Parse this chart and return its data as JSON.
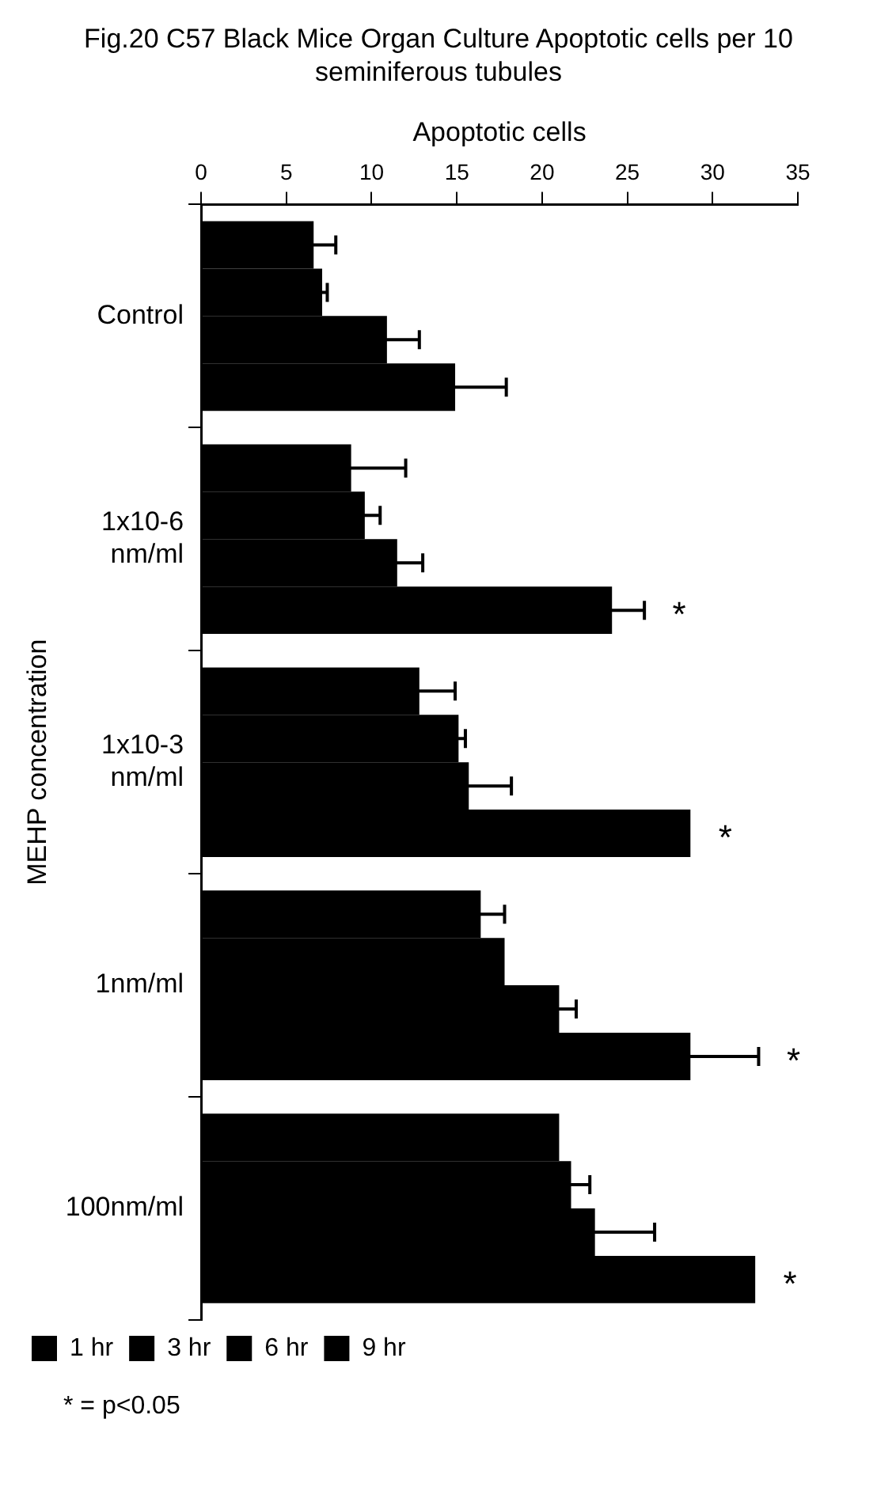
{
  "chart_data": {
    "type": "bar",
    "orientation": "horizontal",
    "title": "Fig.20 C57 Black Mice Organ Culture Apoptotic cells per 10 seminiferous tubules",
    "xlabel": "Apoptotic cells",
    "ylabel": "MEHP concentration",
    "categories": [
      "Control",
      "1x10-6 nm/ml",
      "1x10-3 nm/ml",
      "1nm/ml",
      "100nm/ml"
    ],
    "xlim": [
      0,
      35
    ],
    "xticks": [
      0,
      5,
      10,
      15,
      20,
      25,
      30,
      35
    ],
    "grid": false,
    "legend": "bottom left",
    "series": [
      {
        "name": "1 hr",
        "color": "#000000",
        "values": [
          6.6,
          8.8,
          12.8,
          16.4,
          21.0
        ],
        "errors": [
          1.3,
          3.2,
          2.1,
          1.4,
          null
        ]
      },
      {
        "name": "3 hr",
        "color": "#000000",
        "values": [
          7.1,
          9.6,
          15.1,
          17.8,
          21.7
        ],
        "errors": [
          0.3,
          0.9,
          0.4,
          null,
          1.1
        ]
      },
      {
        "name": "6 hr",
        "color": "#000000",
        "values": [
          10.9,
          11.5,
          15.7,
          21.0,
          23.1
        ],
        "errors": [
          1.9,
          1.5,
          2.5,
          1.0,
          3.5
        ]
      },
      {
        "name": "9 hr",
        "color": "#000000",
        "values": [
          14.9,
          24.1,
          28.7,
          28.7,
          32.5
        ],
        "errors": [
          3.0,
          1.9,
          null,
          4.0,
          null
        ],
        "value_labels": [
          null,
          "*",
          "*",
          "*",
          "*"
        ]
      }
    ],
    "annotations": [
      "* = p<0.05"
    ]
  }
}
